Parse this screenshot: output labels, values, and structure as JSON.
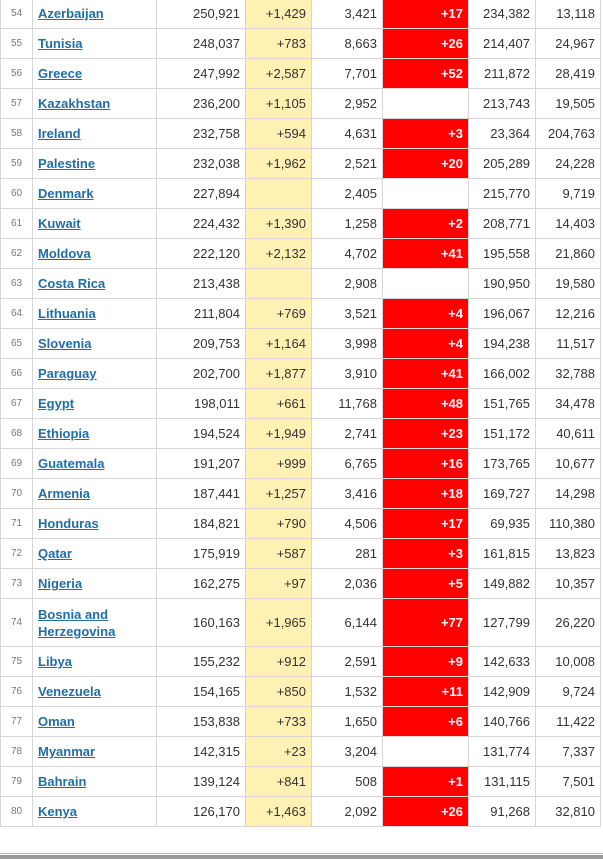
{
  "table": {
    "rows": [
      {
        "rank": "54",
        "country": "Azerbaijan",
        "total_cases": "250,921",
        "new_cases": "+1,429",
        "total_deaths": "3,421",
        "new_deaths": "+17",
        "recovered": "234,382",
        "active": "13,118"
      },
      {
        "rank": "55",
        "country": "Tunisia",
        "total_cases": "248,037",
        "new_cases": "+783",
        "total_deaths": "8,663",
        "new_deaths": "+26",
        "recovered": "214,407",
        "active": "24,967"
      },
      {
        "rank": "56",
        "country": "Greece",
        "total_cases": "247,992",
        "new_cases": "+2,587",
        "total_deaths": "7,701",
        "new_deaths": "+52",
        "recovered": "211,872",
        "active": "28,419"
      },
      {
        "rank": "57",
        "country": "Kazakhstan",
        "total_cases": "236,200",
        "new_cases": "+1,105",
        "total_deaths": "2,952",
        "new_deaths": "",
        "recovered": "213,743",
        "active": "19,505"
      },
      {
        "rank": "58",
        "country": "Ireland",
        "total_cases": "232,758",
        "new_cases": "+594",
        "total_deaths": "4,631",
        "new_deaths": "+3",
        "recovered": "23,364",
        "active": "204,763"
      },
      {
        "rank": "59",
        "country": "Palestine",
        "total_cases": "232,038",
        "new_cases": "+1,962",
        "total_deaths": "2,521",
        "new_deaths": "+20",
        "recovered": "205,289",
        "active": "24,228"
      },
      {
        "rank": "60",
        "country": "Denmark",
        "total_cases": "227,894",
        "new_cases": "",
        "total_deaths": "2,405",
        "new_deaths": "",
        "recovered": "215,770",
        "active": "9,719"
      },
      {
        "rank": "61",
        "country": "Kuwait",
        "total_cases": "224,432",
        "new_cases": "+1,390",
        "total_deaths": "1,258",
        "new_deaths": "+2",
        "recovered": "208,771",
        "active": "14,403"
      },
      {
        "rank": "62",
        "country": "Moldova",
        "total_cases": "222,120",
        "new_cases": "+2,132",
        "total_deaths": "4,702",
        "new_deaths": "+41",
        "recovered": "195,558",
        "active": "21,860"
      },
      {
        "rank": "63",
        "country": "Costa Rica",
        "total_cases": "213,438",
        "new_cases": "",
        "total_deaths": "2,908",
        "new_deaths": "",
        "recovered": "190,950",
        "active": "19,580"
      },
      {
        "rank": "64",
        "country": "Lithuania",
        "total_cases": "211,804",
        "new_cases": "+769",
        "total_deaths": "3,521",
        "new_deaths": "+4",
        "recovered": "196,067",
        "active": "12,216"
      },
      {
        "rank": "65",
        "country": "Slovenia",
        "total_cases": "209,753",
        "new_cases": "+1,164",
        "total_deaths": "3,998",
        "new_deaths": "+4",
        "recovered": "194,238",
        "active": "11,517"
      },
      {
        "rank": "66",
        "country": "Paraguay",
        "total_cases": "202,700",
        "new_cases": "+1,877",
        "total_deaths": "3,910",
        "new_deaths": "+41",
        "recovered": "166,002",
        "active": "32,788"
      },
      {
        "rank": "67",
        "country": "Egypt",
        "total_cases": "198,011",
        "new_cases": "+661",
        "total_deaths": "11,768",
        "new_deaths": "+48",
        "recovered": "151,765",
        "active": "34,478"
      },
      {
        "rank": "68",
        "country": "Ethiopia",
        "total_cases": "194,524",
        "new_cases": "+1,949",
        "total_deaths": "2,741",
        "new_deaths": "+23",
        "recovered": "151,172",
        "active": "40,611"
      },
      {
        "rank": "69",
        "country": "Guatemala",
        "total_cases": "191,207",
        "new_cases": "+999",
        "total_deaths": "6,765",
        "new_deaths": "+16",
        "recovered": "173,765",
        "active": "10,677"
      },
      {
        "rank": "70",
        "country": "Armenia",
        "total_cases": "187,441",
        "new_cases": "+1,257",
        "total_deaths": "3,416",
        "new_deaths": "+18",
        "recovered": "169,727",
        "active": "14,298"
      },
      {
        "rank": "71",
        "country": "Honduras",
        "total_cases": "184,821",
        "new_cases": "+790",
        "total_deaths": "4,506",
        "new_deaths": "+17",
        "recovered": "69,935",
        "active": "110,380"
      },
      {
        "rank": "72",
        "country": "Qatar",
        "total_cases": "175,919",
        "new_cases": "+587",
        "total_deaths": "281",
        "new_deaths": "+3",
        "recovered": "161,815",
        "active": "13,823"
      },
      {
        "rank": "73",
        "country": "Nigeria",
        "total_cases": "162,275",
        "new_cases": "+97",
        "total_deaths": "2,036",
        "new_deaths": "+5",
        "recovered": "149,882",
        "active": "10,357"
      },
      {
        "rank": "74",
        "country": "Bosnia and Herzegovina",
        "total_cases": "160,163",
        "new_cases": "+1,965",
        "total_deaths": "6,144",
        "new_deaths": "+77",
        "recovered": "127,799",
        "active": "26,220"
      },
      {
        "rank": "75",
        "country": "Libya",
        "total_cases": "155,232",
        "new_cases": "+912",
        "total_deaths": "2,591",
        "new_deaths": "+9",
        "recovered": "142,633",
        "active": "10,008"
      },
      {
        "rank": "76",
        "country": "Venezuela",
        "total_cases": "154,165",
        "new_cases": "+850",
        "total_deaths": "1,532",
        "new_deaths": "+11",
        "recovered": "142,909",
        "active": "9,724"
      },
      {
        "rank": "77",
        "country": "Oman",
        "total_cases": "153,838",
        "new_cases": "+733",
        "total_deaths": "1,650",
        "new_deaths": "+6",
        "recovered": "140,766",
        "active": "11,422"
      },
      {
        "rank": "78",
        "country": "Myanmar",
        "total_cases": "142,315",
        "new_cases": "+23",
        "total_deaths": "3,204",
        "new_deaths": "",
        "recovered": "131,774",
        "active": "7,337"
      },
      {
        "rank": "79",
        "country": "Bahrain",
        "total_cases": "139,124",
        "new_cases": "+841",
        "total_deaths": "508",
        "new_deaths": "+1",
        "recovered": "131,115",
        "active": "7,501"
      },
      {
        "rank": "80",
        "country": "Kenya",
        "total_cases": "126,170",
        "new_cases": "+1,463",
        "total_deaths": "2,092",
        "new_deaths": "+26",
        "recovered": "91,268",
        "active": "32,810"
      }
    ]
  },
  "colors": {
    "link": "#226ea6",
    "new_cases_bg": "#fff0b4",
    "new_deaths_bg": "#ff0000",
    "border": "#d6d6d6"
  }
}
